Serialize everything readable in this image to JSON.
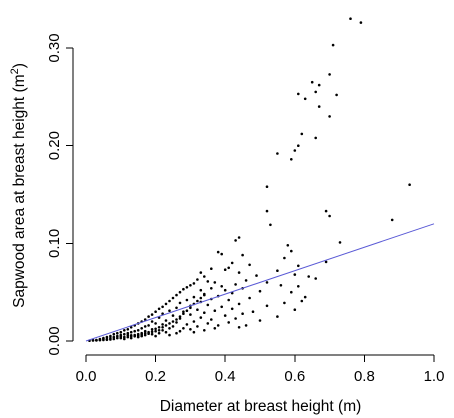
{
  "chart_data": {
    "type": "scatter",
    "title": "",
    "xlabel": "Diameter at breast height (m)",
    "ylabel_main": "Sapwood area at breast height (m",
    "ylabel_sup": "2",
    "ylabel_close": ")",
    "xlim": [
      0,
      1.0
    ],
    "ylim": [
      0,
      0.34
    ],
    "x_ticks": [
      0.0,
      0.2,
      0.4,
      0.6,
      0.8,
      1.0
    ],
    "x_tick_labels": [
      "0.0",
      "0.2",
      "0.4",
      "0.6",
      "0.8",
      "1.0"
    ],
    "y_ticks": [
      0.0,
      0.1,
      0.2,
      0.3
    ],
    "y_tick_labels": [
      "0.00",
      "0.10",
      "0.20",
      "0.30"
    ],
    "grid": false,
    "legend": "none",
    "point_color": "#000000",
    "fit_line": {
      "x": [
        0.0,
        1.0
      ],
      "y": [
        0.0,
        0.12
      ],
      "color": "#5a5ad6"
    },
    "series": [
      {
        "points": [
          [
            0.76,
            0.33
          ],
          [
            0.79,
            0.326
          ],
          [
            0.71,
            0.303
          ],
          [
            0.7,
            0.273
          ],
          [
            0.65,
            0.265
          ],
          [
            0.67,
            0.262
          ],
          [
            0.66,
            0.255
          ],
          [
            0.61,
            0.253
          ],
          [
            0.72,
            0.252
          ],
          [
            0.63,
            0.248
          ],
          [
            0.67,
            0.24
          ],
          [
            0.7,
            0.23
          ],
          [
            0.62,
            0.212
          ],
          [
            0.66,
            0.208
          ],
          [
            0.61,
            0.2
          ],
          [
            0.6,
            0.195
          ],
          [
            0.55,
            0.192
          ],
          [
            0.59,
            0.186
          ],
          [
            0.93,
            0.16
          ],
          [
            0.52,
            0.158
          ],
          [
            0.69,
            0.133
          ],
          [
            0.52,
            0.133
          ],
          [
            0.88,
            0.124
          ],
          [
            0.7,
            0.128
          ],
          [
            0.53,
            0.119
          ],
          [
            0.44,
            0.106
          ],
          [
            0.43,
            0.103
          ],
          [
            0.73,
            0.101
          ],
          [
            0.58,
            0.098
          ],
          [
            0.59,
            0.092
          ],
          [
            0.38,
            0.091
          ],
          [
            0.39,
            0.089
          ],
          [
            0.45,
            0.088
          ],
          [
            0.57,
            0.085
          ],
          [
            0.69,
            0.081
          ],
          [
            0.42,
            0.08
          ],
          [
            0.47,
            0.078
          ],
          [
            0.61,
            0.077
          ],
          [
            0.41,
            0.075
          ],
          [
            0.36,
            0.074
          ],
          [
            0.4,
            0.073
          ],
          [
            0.55,
            0.072
          ],
          [
            0.33,
            0.07
          ],
          [
            0.44,
            0.07
          ],
          [
            0.6,
            0.068
          ],
          [
            0.49,
            0.067
          ],
          [
            0.34,
            0.066
          ],
          [
            0.64,
            0.066
          ],
          [
            0.66,
            0.064
          ],
          [
            0.32,
            0.063
          ],
          [
            0.46,
            0.062
          ],
          [
            0.35,
            0.061
          ],
          [
            0.37,
            0.06
          ],
          [
            0.52,
            0.06
          ],
          [
            0.31,
            0.059
          ],
          [
            0.43,
            0.058
          ],
          [
            0.3,
            0.057
          ],
          [
            0.56,
            0.057
          ],
          [
            0.39,
            0.056
          ],
          [
            0.61,
            0.056
          ],
          [
            0.29,
            0.055
          ],
          [
            0.36,
            0.054
          ],
          [
            0.45,
            0.054
          ],
          [
            0.28,
            0.053
          ],
          [
            0.33,
            0.052
          ],
          [
            0.4,
            0.052
          ],
          [
            0.5,
            0.051
          ],
          [
            0.59,
            0.05
          ],
          [
            0.27,
            0.05
          ],
          [
            0.42,
            0.049
          ],
          [
            0.34,
            0.048
          ],
          [
            0.26,
            0.047
          ],
          [
            0.38,
            0.046
          ],
          [
            0.63,
            0.045
          ],
          [
            0.31,
            0.045
          ],
          [
            0.47,
            0.044
          ],
          [
            0.25,
            0.044
          ],
          [
            0.36,
            0.043
          ],
          [
            0.29,
            0.042
          ],
          [
            0.41,
            0.042
          ],
          [
            0.62,
            0.041
          ],
          [
            0.24,
            0.041
          ],
          [
            0.33,
            0.04
          ],
          [
            0.57,
            0.039
          ],
          [
            0.27,
            0.039
          ],
          [
            0.44,
            0.038
          ],
          [
            0.23,
            0.038
          ],
          [
            0.35,
            0.037
          ],
          [
            0.3,
            0.036
          ],
          [
            0.52,
            0.036
          ],
          [
            0.22,
            0.035
          ],
          [
            0.39,
            0.035
          ],
          [
            0.26,
            0.034
          ],
          [
            0.42,
            0.033
          ],
          [
            0.21,
            0.033
          ],
          [
            0.32,
            0.032
          ],
          [
            0.6,
            0.032
          ],
          [
            0.24,
            0.031
          ],
          [
            0.37,
            0.031
          ],
          [
            0.28,
            0.03
          ],
          [
            0.48,
            0.03
          ],
          [
            0.2,
            0.03
          ],
          [
            0.34,
            0.029
          ],
          [
            0.22,
            0.028
          ],
          [
            0.45,
            0.028
          ],
          [
            0.3,
            0.027
          ],
          [
            0.19,
            0.027
          ],
          [
            0.4,
            0.026
          ],
          [
            0.25,
            0.026
          ],
          [
            0.55,
            0.025
          ],
          [
            0.18,
            0.025
          ],
          [
            0.33,
            0.024
          ],
          [
            0.21,
            0.024
          ],
          [
            0.43,
            0.023
          ],
          [
            0.27,
            0.023
          ],
          [
            0.17,
            0.022
          ],
          [
            0.36,
            0.022
          ],
          [
            0.23,
            0.021
          ],
          [
            0.5,
            0.021
          ],
          [
            0.19,
            0.02
          ],
          [
            0.31,
            0.02
          ],
          [
            0.16,
            0.02
          ],
          [
            0.41,
            0.019
          ],
          [
            0.26,
            0.019
          ],
          [
            0.2,
            0.018
          ],
          [
            0.35,
            0.018
          ],
          [
            0.15,
            0.018
          ],
          [
            0.29,
            0.017
          ],
          [
            0.22,
            0.017
          ],
          [
            0.46,
            0.016
          ],
          [
            0.18,
            0.016
          ],
          [
            0.38,
            0.016
          ],
          [
            0.14,
            0.016
          ],
          [
            0.25,
            0.015
          ],
          [
            0.32,
            0.015
          ],
          [
            0.17,
            0.015
          ],
          [
            0.44,
            0.014
          ],
          [
            0.21,
            0.014
          ],
          [
            0.13,
            0.014
          ],
          [
            0.28,
            0.013
          ],
          [
            0.16,
            0.013
          ],
          [
            0.24,
            0.013
          ],
          [
            0.37,
            0.013
          ],
          [
            0.12,
            0.012
          ],
          [
            0.19,
            0.012
          ],
          [
            0.3,
            0.012
          ],
          [
            0.15,
            0.011
          ],
          [
            0.22,
            0.011
          ],
          [
            0.11,
            0.011
          ],
          [
            0.34,
            0.011
          ],
          [
            0.17,
            0.01
          ],
          [
            0.27,
            0.01
          ],
          [
            0.14,
            0.01
          ],
          [
            0.2,
            0.01
          ],
          [
            0.1,
            0.009
          ],
          [
            0.23,
            0.009
          ],
          [
            0.13,
            0.009
          ],
          [
            0.18,
            0.009
          ],
          [
            0.31,
            0.009
          ],
          [
            0.16,
            0.008
          ],
          [
            0.09,
            0.008
          ],
          [
            0.21,
            0.008
          ],
          [
            0.12,
            0.008
          ],
          [
            0.26,
            0.008
          ],
          [
            0.15,
            0.007
          ],
          [
            0.08,
            0.007
          ],
          [
            0.19,
            0.007
          ],
          [
            0.11,
            0.007
          ],
          [
            0.14,
            0.006
          ],
          [
            0.24,
            0.006
          ],
          [
            0.1,
            0.006
          ],
          [
            0.17,
            0.006
          ],
          [
            0.07,
            0.005
          ],
          [
            0.13,
            0.005
          ],
          [
            0.2,
            0.005
          ],
          [
            0.09,
            0.005
          ],
          [
            0.16,
            0.005
          ],
          [
            0.06,
            0.004
          ],
          [
            0.12,
            0.004
          ],
          [
            0.08,
            0.004
          ],
          [
            0.15,
            0.004
          ],
          [
            0.11,
            0.004
          ],
          [
            0.05,
            0.003
          ],
          [
            0.1,
            0.003
          ],
          [
            0.07,
            0.003
          ],
          [
            0.13,
            0.003
          ],
          [
            0.09,
            0.003
          ],
          [
            0.04,
            0.002
          ],
          [
            0.06,
            0.002
          ],
          [
            0.08,
            0.002
          ],
          [
            0.11,
            0.002
          ],
          [
            0.05,
            0.002
          ],
          [
            0.03,
            0.001
          ],
          [
            0.07,
            0.0015
          ],
          [
            0.04,
            0.001
          ],
          [
            0.06,
            0.0012
          ],
          [
            0.02,
            0.0008
          ],
          [
            0.05,
            0.001
          ],
          [
            0.03,
            0.0008
          ],
          [
            0.04,
            0.0009
          ],
          [
            0.02,
            0.0005
          ],
          [
            0.01,
            0.0003
          ],
          [
            0.03,
            0.0006
          ],
          [
            0.15,
            0.0055
          ],
          [
            0.14,
            0.0048
          ],
          [
            0.12,
            0.006
          ],
          [
            0.16,
            0.0065
          ],
          [
            0.18,
            0.0075
          ],
          [
            0.1,
            0.0045
          ],
          [
            0.13,
            0.0058
          ],
          [
            0.17,
            0.008
          ],
          [
            0.19,
            0.0095
          ],
          [
            0.21,
            0.011
          ],
          [
            0.2,
            0.0125
          ],
          [
            0.22,
            0.014
          ],
          [
            0.23,
            0.016
          ],
          [
            0.24,
            0.018
          ],
          [
            0.25,
            0.02
          ],
          [
            0.26,
            0.022
          ],
          [
            0.27,
            0.025
          ],
          [
            0.28,
            0.028
          ],
          [
            0.29,
            0.031
          ],
          [
            0.3,
            0.034
          ],
          [
            0.31,
            0.038
          ],
          [
            0.32,
            0.041
          ],
          [
            0.33,
            0.044
          ],
          [
            0.34,
            0.047
          ]
        ]
      }
    ]
  }
}
